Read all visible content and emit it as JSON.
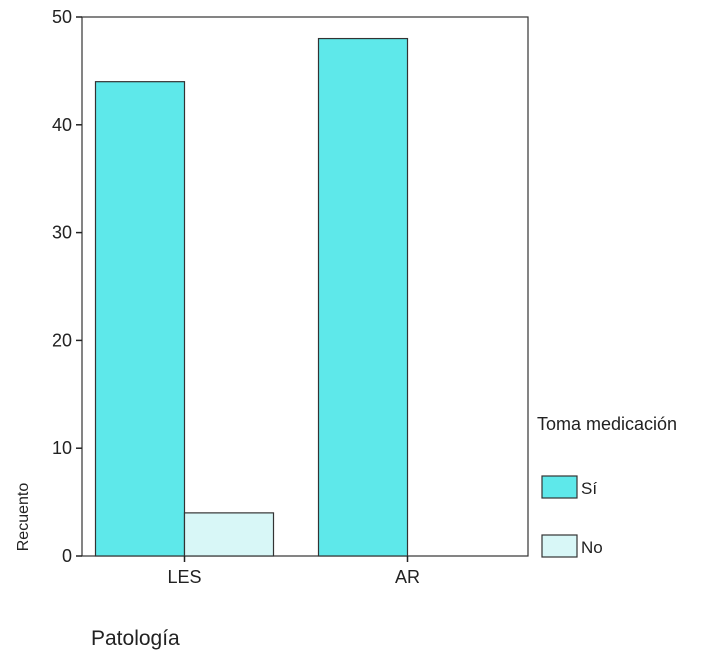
{
  "chart_data": {
    "type": "bar",
    "categories": [
      "LES",
      "AR"
    ],
    "series": [
      {
        "name": "Sí",
        "values": [
          44,
          48
        ],
        "color": "#5ee8ea"
      },
      {
        "name": "No",
        "values": [
          4,
          0
        ],
        "color": "#d8f7f7"
      }
    ],
    "xlabel": "Patología",
    "ylabel": "Recuento",
    "ylim": [
      0,
      50
    ],
    "yticks": [
      0,
      10,
      20,
      30,
      40,
      50
    ],
    "grid": false,
    "legend": {
      "title": "Toma medicación",
      "placement": "right"
    }
  }
}
